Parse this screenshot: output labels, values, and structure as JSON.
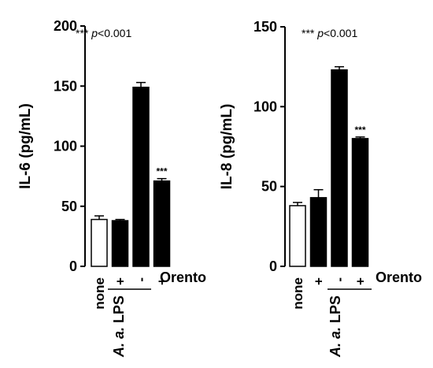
{
  "chart_data": [
    {
      "type": "bar",
      "ylabel": "IL-6 (pg/mL)",
      "ylim": [
        0,
        200
      ],
      "yticks": [
        "0",
        "50",
        "100",
        "150",
        "200"
      ],
      "categories": [
        "none",
        "+",
        "-",
        "+"
      ],
      "values": [
        39,
        38,
        149,
        71
      ],
      "errors": [
        3,
        1,
        4,
        2
      ],
      "bar_colors": [
        "#ffffff",
        "#000000",
        "#000000",
        "#000000"
      ],
      "significance": [
        "",
        "",
        "",
        "***"
      ],
      "annotation": {
        "stars": "***",
        "p": "p",
        "rest": "<0.001"
      },
      "row_label": "Orento",
      "group_label": {
        "italic": "A. a.",
        "rest": " LPS"
      }
    },
    {
      "type": "bar",
      "ylabel": "IL-8 (pg/mL)",
      "ylim": [
        0,
        150
      ],
      "yticks": [
        "0",
        "50",
        "100",
        "150"
      ],
      "categories": [
        "none",
        "+",
        "-",
        "+"
      ],
      "values": [
        38,
        43,
        123,
        80
      ],
      "errors": [
        2,
        5,
        2,
        1
      ],
      "bar_colors": [
        "#ffffff",
        "#000000",
        "#000000",
        "#000000"
      ],
      "significance": [
        "",
        "",
        "",
        "***"
      ],
      "annotation": {
        "stars": "***",
        "p": "p",
        "rest": "<0.001"
      },
      "row_label": "Orento",
      "group_label": {
        "italic": "A. a.",
        "rest": " LPS"
      }
    }
  ]
}
